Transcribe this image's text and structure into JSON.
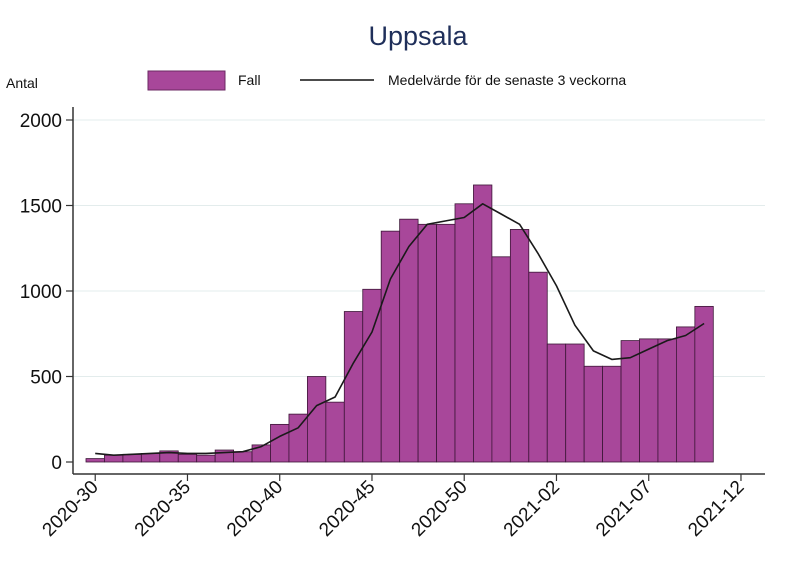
{
  "chart_data": {
    "type": "bar",
    "title": "Uppsala",
    "ylabel": "Antal",
    "xlabel": "",
    "ylim": [
      0,
      2000
    ],
    "yticks": [
      0,
      500,
      1000,
      1500,
      2000
    ],
    "xtick_labels": [
      "2020-30",
      "2020-35",
      "2020-40",
      "2020-45",
      "2020-50",
      "2021-02",
      "2021-07",
      "2021-12"
    ],
    "grid": true,
    "legend_position": "top",
    "categories": [
      "2020-30",
      "2020-31",
      "2020-32",
      "2020-33",
      "2020-34",
      "2020-35",
      "2020-36",
      "2020-37",
      "2020-38",
      "2020-39",
      "2020-40",
      "2020-41",
      "2020-42",
      "2020-43",
      "2020-44",
      "2020-45",
      "2020-46",
      "2020-47",
      "2020-48",
      "2020-49",
      "2020-50",
      "2020-51",
      "2020-52",
      "2020-53",
      "2021-01",
      "2021-02",
      "2021-03",
      "2021-04",
      "2021-05",
      "2021-06",
      "2021-07",
      "2021-08",
      "2021-09",
      "2021-10"
    ],
    "series": [
      {
        "name": "Fall",
        "type": "bar",
        "color": "#a8479a",
        "values": [
          20,
          40,
          45,
          50,
          65,
          45,
          40,
          70,
          60,
          100,
          220,
          280,
          500,
          350,
          880,
          1010,
          1350,
          1420,
          1390,
          1390,
          1510,
          1620,
          1200,
          1360,
          1110,
          690,
          690,
          560,
          560,
          710,
          720,
          720,
          790,
          910
        ]
      },
      {
        "name": "Medelvärde för de senaste 3 veckorna",
        "type": "line",
        "color": "#111111",
        "values": [
          50,
          40,
          45,
          50,
          55,
          50,
          50,
          55,
          60,
          90,
          150,
          200,
          330,
          380,
          580,
          760,
          1070,
          1260,
          1390,
          1410,
          1430,
          1510,
          1450,
          1390,
          1220,
          1030,
          800,
          650,
          600,
          610,
          660,
          710,
          740,
          810
        ]
      }
    ]
  }
}
